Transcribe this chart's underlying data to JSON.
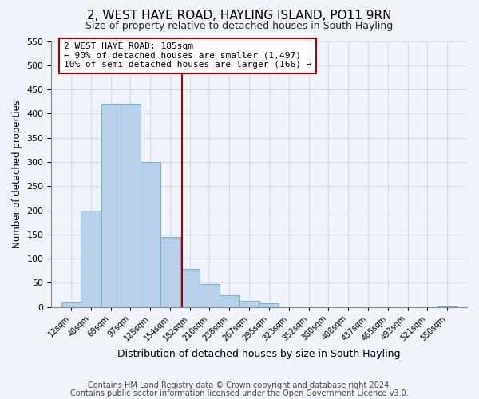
{
  "title": "2, WEST HAYE ROAD, HAYLING ISLAND, PO11 9RN",
  "subtitle": "Size of property relative to detached houses in South Hayling",
  "xlabel": "Distribution of detached houses by size in South Hayling",
  "ylabel": "Number of detached properties",
  "footer_lines": [
    "Contains HM Land Registry data © Crown copyright and database right 2024.",
    "Contains public sector information licensed under the Open Government Licence v3.0."
  ],
  "bin_edges": [
    12,
    40,
    69,
    97,
    125,
    154,
    182,
    210,
    238,
    267,
    295,
    323,
    352,
    380,
    408,
    437,
    465,
    493,
    521,
    550,
    578
  ],
  "bin_heights": [
    10,
    200,
    420,
    420,
    300,
    145,
    78,
    48,
    25,
    13,
    8,
    0,
    0,
    0,
    0,
    0,
    0,
    0,
    0,
    2
  ],
  "bar_color": "#b8d0e8",
  "bar_edge_color": "#6aafd6",
  "property_value": 185,
  "vline_color": "#aa0000",
  "annotation_text_line1": "2 WEST HAYE ROAD: 185sqm",
  "annotation_text_line2": "← 90% of detached houses are smaller (1,497)",
  "annotation_text_line3": "10% of semi-detached houses are larger (166) →",
  "ylim": [
    0,
    550
  ],
  "xlim_left": -2,
  "background_color": "#f0f4fa",
  "grid_color": "#c8d4e8",
  "title_fontsize": 11,
  "subtitle_fontsize": 9,
  "yticks": [
    0,
    50,
    100,
    150,
    200,
    250,
    300,
    350,
    400,
    450,
    500,
    550
  ]
}
